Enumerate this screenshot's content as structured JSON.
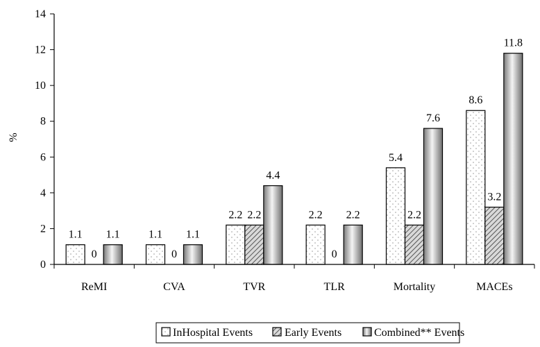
{
  "chart_data": {
    "type": "bar",
    "title": "",
    "xlabel": "",
    "ylabel": "%",
    "ylim": [
      0,
      14
    ],
    "yticks": [
      0,
      2,
      4,
      6,
      8,
      10,
      12,
      14
    ],
    "grid": false,
    "legend_position": "bottom",
    "categories": [
      "ReMI",
      "CVA",
      "TVR",
      "TLR",
      "Mortality",
      "MACEs"
    ],
    "series": [
      {
        "name": "InHospital Events",
        "values": [
          1.1,
          1.1,
          2.2,
          2.2,
          5.4,
          8.6
        ],
        "labels": [
          "1.1",
          "1.1",
          "2.2",
          "2.2",
          "5.4",
          "8.6"
        ],
        "pattern": "dotted"
      },
      {
        "name": "Early Events",
        "values": [
          0,
          0,
          2.2,
          0,
          2.2,
          3.2
        ],
        "labels": [
          "0",
          "0",
          "2.2",
          "0",
          "2.2",
          "3.2"
        ],
        "pattern": "hatched"
      },
      {
        "name": "Combined** Events",
        "values": [
          1.1,
          1.1,
          4.4,
          2.2,
          7.6,
          11.8
        ],
        "labels": [
          "1.1",
          "1.1",
          "4.4",
          "2.2",
          "7.6",
          "11.8"
        ],
        "pattern": "gradient"
      }
    ]
  }
}
